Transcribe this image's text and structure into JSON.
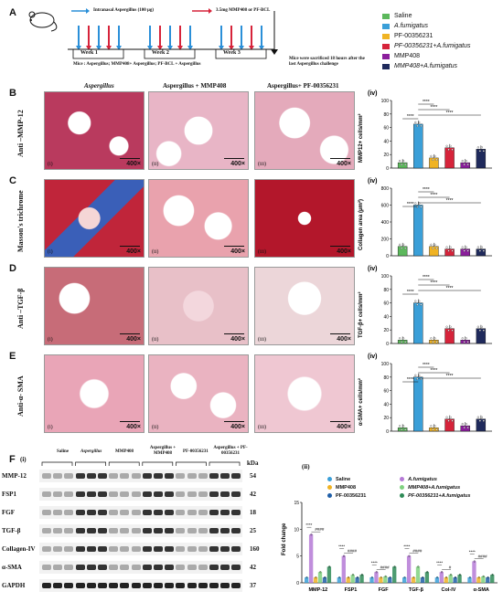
{
  "panelA": {
    "letter": "A",
    "arrow_legend_1": "Intranasal Aspergillus (100 μg)",
    "arrow_legend_2": "3.5mg MMP408 or PF-BCL",
    "weeks": [
      "Week 1",
      "Week 2",
      "Week 3"
    ],
    "mice_line": "Mice : Aspergillus; MMP408+ Aspergillus; PF-BCL + Aspergillus",
    "sacrifice_note": "Mice were sacrificed 18 hours after the last Aspergillus challenge"
  },
  "legend": [
    {
      "label": "Saline",
      "color": "#5cb85c"
    },
    {
      "label": "A.fumigatus",
      "color": "#3a9fd8"
    },
    {
      "label": "PF-00356231",
      "color": "#f0b323"
    },
    {
      "label": "PF-00356231+A.fumigatus",
      "color": "#d6233a"
    },
    {
      "label": "MMP408",
      "color": "#8b1e9c"
    },
    {
      "label": "MMP408+A.fumigatus",
      "color": "#1f2a5c"
    }
  ],
  "columns": [
    "Aspergillus",
    "Aspergillus + MMP408",
    "Aspergillus+ PF-00356231"
  ],
  "rows": [
    {
      "letter": "B",
      "label": "Anti –MMP-12",
      "ylabel": "MMP12+ cells/mm²",
      "panel_tag": "(iv)",
      "ymax_ticks": [
        "0",
        "20",
        "40",
        "60",
        "80",
        "100"
      ]
    },
    {
      "letter": "C",
      "label": "Masson's trichrome",
      "ylabel": "Collagen area (μm²)",
      "panel_tag": "(iv)",
      "ymax_ticks": [
        "0",
        "200",
        "400",
        "600",
        "800"
      ]
    },
    {
      "letter": "D",
      "label": "Anti –TGF-β",
      "ylabel": "TGF-β+ cells/mm²",
      "panel_tag": "(iv)",
      "ymax_ticks": [
        "0",
        "20",
        "40",
        "60",
        "80",
        "100"
      ]
    },
    {
      "letter": "E",
      "label": "Anti-α- SMA",
      "ylabel": "α-SMA+ cells/mm²",
      "panel_tag": "(iv)",
      "ymax_ticks": [
        "0",
        "20",
        "40",
        "60",
        "80",
        "100"
      ]
    }
  ],
  "micro_labels": [
    "(i)",
    "(ii)",
    "(iii)"
  ],
  "magnification": "400×",
  "significance": "****",
  "panelF": {
    "letter": "F",
    "sub_i": "(i)",
    "sub_ii": "(ii)",
    "lanes": [
      "Saline",
      "Aspergillus",
      "MMP408",
      "Aspergillus + MMP408",
      "PF-00356231",
      "Aspergillus + PF-00356231"
    ],
    "kda_label": "kDa",
    "proteins": [
      {
        "name": "MMP-12",
        "kda": "54"
      },
      {
        "name": "FSP1",
        "kda": "42"
      },
      {
        "name": "FGF",
        "kda": "18"
      },
      {
        "name": "TGF-β",
        "kda": "25"
      },
      {
        "name": "Collagen-IV",
        "kda": "160"
      },
      {
        "name": "α-SMA",
        "kda": "42"
      },
      {
        "name": "GAPDH",
        "kda": "37"
      }
    ],
    "fold_ylabel": "Fold change",
    "fold_legend": [
      {
        "label": "Saline",
        "color": "#3a9fd8"
      },
      {
        "label": "A.fumigatus",
        "color": "#b57ad6"
      },
      {
        "label": "MMP408",
        "color": "#f0b323"
      },
      {
        "label": "MMP408+A.fumigatus",
        "color": "#7fd17f"
      },
      {
        "label": "PF-00356231",
        "color": "#1f5fa8"
      },
      {
        "label": "PF-00356231+A.fumigatus",
        "color": "#2e8b57"
      }
    ],
    "hash_sig": "####",
    "hash_sig_single": "#"
  },
  "chart_data": [
    {
      "type": "bar",
      "ylabel": "MMP12+ cells/mm²",
      "categories": [
        "Saline",
        "A.fumigatus",
        "PF-00356231",
        "PF-00356231+A.fumigatus",
        "MMP408",
        "MMP408+A.fumigatus"
      ],
      "values": [
        8,
        65,
        15,
        30,
        8,
        28
      ],
      "ylim": [
        0,
        100
      ]
    },
    {
      "type": "bar",
      "ylabel": "Collagen area (μm²)",
      "categories": [
        "Saline",
        "A.fumigatus",
        "PF-00356231",
        "PF-00356231+A.fumigatus",
        "MMP408",
        "MMP408+A.fumigatus"
      ],
      "values": [
        110,
        600,
        110,
        80,
        80,
        80
      ],
      "ylim": [
        0,
        800
      ]
    },
    {
      "type": "bar",
      "ylabel": "TGF-β+ cells/mm²",
      "categories": [
        "Saline",
        "A.fumigatus",
        "PF-00356231",
        "PF-00356231+A.fumigatus",
        "MMP408",
        "MMP408+A.fumigatus"
      ],
      "values": [
        5,
        60,
        5,
        22,
        5,
        22
      ],
      "ylim": [
        0,
        100
      ]
    },
    {
      "type": "bar",
      "ylabel": "α-SMA+ cells/mm²",
      "categories": [
        "Saline",
        "A.fumigatus",
        "PF-00356231",
        "PF-00356231+A.fumigatus",
        "MMP408",
        "MMP408+A.fumigatus"
      ],
      "values": [
        5,
        80,
        5,
        18,
        8,
        18
      ],
      "ylim": [
        0,
        100
      ]
    },
    {
      "type": "bar",
      "ylabel": "Fold change",
      "categories": [
        "MMP-12",
        "FSP1",
        "FGF",
        "TGF-β",
        "Col-IV",
        "α-SMA"
      ],
      "series": [
        {
          "name": "Saline",
          "values": [
            1,
            1,
            1,
            1,
            1,
            1
          ]
        },
        {
          "name": "A.fumigatus",
          "values": [
            9,
            5,
            2,
            5,
            2,
            4
          ]
        },
        {
          "name": "MMP408",
          "values": [
            1,
            1,
            1,
            1,
            1,
            1
          ]
        },
        {
          "name": "MMP408+A.fumigatus",
          "values": [
            2,
            1.5,
            1.2,
            3,
            1.5,
            1.2
          ]
        },
        {
          "name": "PF-00356231",
          "values": [
            1,
            1,
            1,
            1,
            1,
            1
          ]
        },
        {
          "name": "PF-00356231+A.fumigatus",
          "values": [
            3,
            1.5,
            3,
            2,
            1.5,
            1.5
          ]
        }
      ],
      "ylim": [
        0,
        15
      ]
    }
  ]
}
